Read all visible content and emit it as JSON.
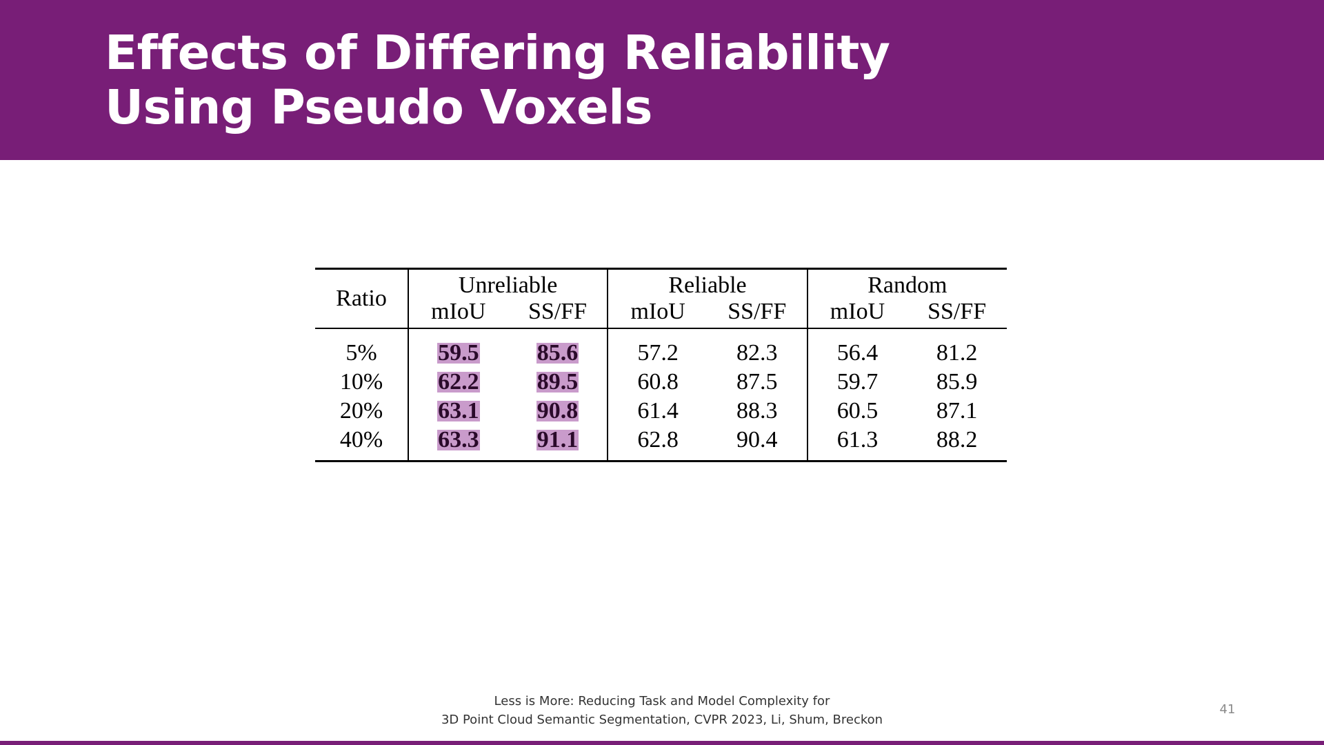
{
  "colors": {
    "brand": "#781e77",
    "highlight": "#c99bcb"
  },
  "slide": {
    "title_line1": "Effects of Differing Reliability",
    "title_line2": "Using Pseudo Voxels"
  },
  "table": {
    "ratio_header": "Ratio",
    "groups": [
      "Unreliable",
      "Reliable",
      "Random"
    ],
    "subheaders": [
      "mIoU",
      "SS/FF",
      "mIoU",
      "SS/FF",
      "mIoU",
      "SS/FF"
    ],
    "rows": [
      {
        "ratio": "5%",
        "values": [
          "59.5",
          "85.6",
          "57.2",
          "82.3",
          "56.4",
          "81.2"
        ]
      },
      {
        "ratio": "10%",
        "values": [
          "62.2",
          "89.5",
          "60.8",
          "87.5",
          "59.7",
          "85.9"
        ]
      },
      {
        "ratio": "20%",
        "values": [
          "63.1",
          "90.8",
          "61.4",
          "88.3",
          "60.5",
          "87.1"
        ]
      },
      {
        "ratio": "40%",
        "values": [
          "63.3",
          "91.1",
          "62.8",
          "90.4",
          "61.3",
          "88.2"
        ]
      }
    ]
  },
  "footer": {
    "citation_line1": "Less is More: Reducing Task and Model Complexity for",
    "citation_line2": "3D Point Cloud Semantic Segmentation, CVPR 2023, Li, Shum, Breckon",
    "page_number": "41"
  }
}
